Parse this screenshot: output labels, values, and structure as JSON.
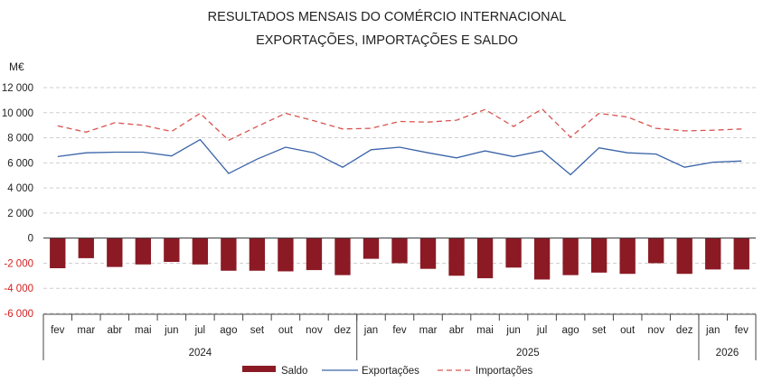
{
  "chart_data": {
    "type": "bar",
    "title": "RESULTADOS MENSAIS DO COMÉRCIO INTERNACIONAL",
    "subtitle": "EXPORTAÇÕES, IMPORTAÇÕES E SALDO",
    "ylabel": "M€",
    "ylim": [
      -6000,
      12000
    ],
    "yticks": [
      12000,
      10000,
      8000,
      6000,
      4000,
      2000,
      0,
      -2000,
      -4000,
      -6000
    ],
    "ytick_labels": [
      "12 000",
      "10 000",
      "8 000",
      "6 000",
      "4 000",
      "2 000",
      "0",
      "-2 000",
      "-4 000",
      "-6 000"
    ],
    "grid": true,
    "legend_position": "bottom",
    "categories": [
      "fev",
      "mar",
      "abr",
      "mai",
      "jun",
      "jul",
      "ago",
      "set",
      "out",
      "nov",
      "dez",
      "jan",
      "fev",
      "mar",
      "abr",
      "mai",
      "jun",
      "jul",
      "ago",
      "set",
      "out",
      "nov",
      "dez",
      "jan",
      "fev"
    ],
    "year_groups": [
      {
        "label": "2024",
        "count": 11
      },
      {
        "label": "2025",
        "count": 12
      },
      {
        "label": "2026",
        "count": 2
      }
    ],
    "series": [
      {
        "name": "Saldo",
        "kind": "bar",
        "color": "#8b1a24",
        "values": [
          -2400,
          -1600,
          -2300,
          -2100,
          -1900,
          -2100,
          -2600,
          -2600,
          -2650,
          -2550,
          -2950,
          -1650,
          -2000,
          -2450,
          -3000,
          -3200,
          -2350,
          -3300,
          -2950,
          -2750,
          -2850,
          -2000,
          -2850,
          -2500,
          -2500
        ]
      },
      {
        "name": "Exportações",
        "kind": "line",
        "color": "#3a63a8",
        "values": [
          6500,
          6800,
          6850,
          6850,
          6550,
          7850,
          5150,
          6300,
          7250,
          6800,
          5650,
          7050,
          7250,
          6800,
          6400,
          6950,
          6500,
          6950,
          5050,
          7200,
          6800,
          6700,
          5650,
          6050,
          6150
        ]
      },
      {
        "name": "Importações",
        "kind": "dashed-line",
        "color": "#d9534f",
        "values": [
          8950,
          8450,
          9200,
          9000,
          8500,
          9950,
          7800,
          8900,
          9950,
          9350,
          8700,
          8750,
          9300,
          9250,
          9400,
          10250,
          8900,
          10300,
          8050,
          9950,
          9650,
          8750,
          8550,
          8600,
          8700
        ]
      }
    ]
  }
}
